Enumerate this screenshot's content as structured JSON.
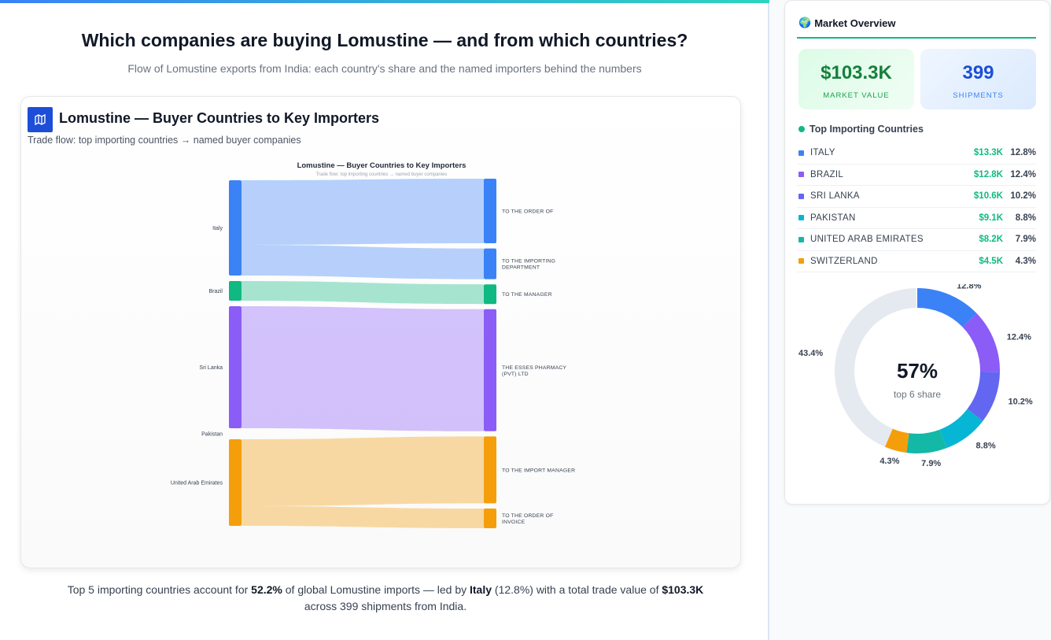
{
  "page": {
    "title": "Which companies are buying Lomustine — and from which countries?",
    "subtitle": "Flow of Lomustine exports from India: each country's share and the named importers behind the numbers"
  },
  "card": {
    "icon": "map-icon",
    "title": "Lomustine — Buyer Countries to Key Importers",
    "subtitle": "Trade flow: top importing countries → named buyer companies"
  },
  "sankey": {
    "title": "Lomustine — Buyer Countries to Key Importers",
    "subtitle": "Trade flow: top importing countries → named buyer companies",
    "sources": [
      {
        "name": "Italy",
        "color": "#3b82f6"
      },
      {
        "name": "Brazil",
        "color": "#10b981"
      },
      {
        "name": "Sri Lanka",
        "color": "#8b5cf6"
      },
      {
        "name": "Pakistan",
        "color": "#06b6d4"
      },
      {
        "name": "United Arab Emirates",
        "color": "#f59e0b"
      }
    ],
    "targets": [
      {
        "name": "TO THE ORDER OF",
        "color": "#3b82f6"
      },
      {
        "name": "TO THE IMPORTING DEPARTMENT",
        "color": "#3b82f6"
      },
      {
        "name": "TO THE MANAGER",
        "color": "#10b981"
      },
      {
        "name": "THE ESSES PHARMACY (PVT) LTD",
        "color": "#8b5cf6"
      },
      {
        "name": "TO THE IMPORT MANAGER",
        "color": "#f59e0b"
      },
      {
        "name": "TO THE ORDER OF INVOICE",
        "color": "#f59e0b"
      }
    ],
    "links": [
      {
        "s": 0,
        "t": 0,
        "v": 82
      },
      {
        "s": 0,
        "t": 1,
        "v": 39
      },
      {
        "s": 1,
        "t": 2,
        "v": 25
      },
      {
        "s": 2,
        "t": 3,
        "v": 155
      },
      {
        "s": 4,
        "t": 4,
        "v": 85
      },
      {
        "s": 4,
        "t": 5,
        "v": 25
      }
    ]
  },
  "footer": {
    "pre": "Top 5 importing countries account for ",
    "share": "52.2%",
    "mid": " of global Lomustine imports — led by ",
    "leader": "Italy",
    "leader_pct": " (12.8%) with a total trade value of ",
    "total": "$103.3K",
    "post": " across 399 shipments from India."
  },
  "side": {
    "icon": "globe-icon",
    "title": "Market Overview",
    "market_value": "$103.3K",
    "market_value_label": "MARKET VALUE",
    "shipments": "399",
    "shipments_label": "SHIPMENTS",
    "countries_title": "Top Importing Countries",
    "countries": [
      {
        "name": "ITALY",
        "value": "$13.3K",
        "pct": "12.8%",
        "share": 12.8,
        "color": "#3b82f6"
      },
      {
        "name": "BRAZIL",
        "value": "$12.8K",
        "pct": "12.4%",
        "share": 12.4,
        "color": "#8b5cf6"
      },
      {
        "name": "SRI LANKA",
        "value": "$10.6K",
        "pct": "10.2%",
        "share": 10.2,
        "color": "#6366f1"
      },
      {
        "name": "PAKISTAN",
        "value": "$9.1K",
        "pct": "8.8%",
        "share": 8.8,
        "color": "#06b6d4"
      },
      {
        "name": "UNITED ARAB EMIRATES",
        "value": "$8.2K",
        "pct": "7.9%",
        "share": 7.9,
        "color": "#14b8a6"
      },
      {
        "name": "SWITZERLAND",
        "value": "$4.5K",
        "pct": "4.3%",
        "share": 4.3,
        "color": "#f59e0b"
      }
    ],
    "other": {
      "pct": "43.4%",
      "share": 43.4,
      "color": "#e5e9f0"
    },
    "donut_center": "57%",
    "donut_center_label": "top 6 share"
  }
}
